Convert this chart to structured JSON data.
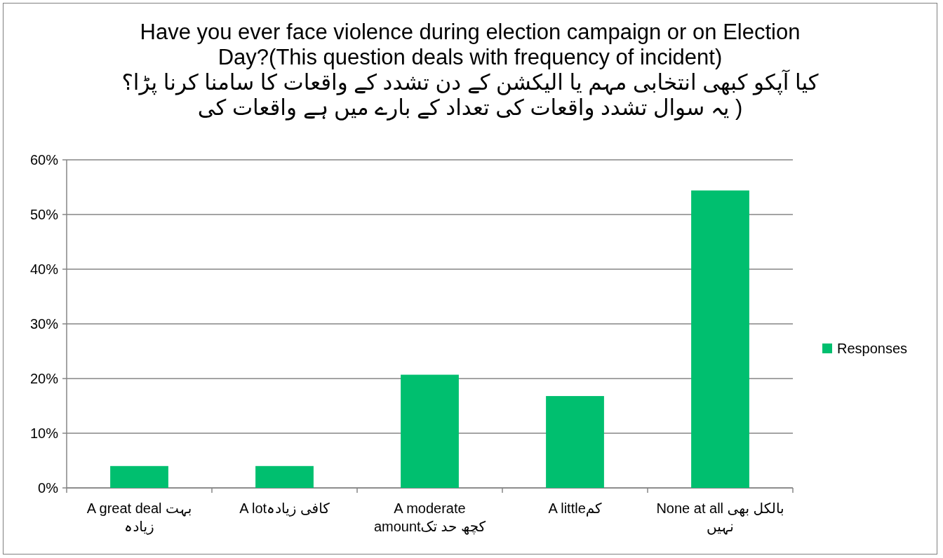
{
  "chart_data": {
    "type": "bar",
    "title": "Have you ever face violence during election campaign or on Election Day?(This question deals with frequency of incident)",
    "subtitle": "کیا آپکو کبھی انتخابی مہم یا الیکشن کے دن تشدد کے واقعات کا سامنا کرنا پڑا؟( یہ سوال تشدد واقعات کی تعداد کے بارے میں ہے واقعات کی",
    "categories": [
      "A great deal بہت زیادہ",
      "A lotکافی زیادہ",
      "A moderate amountکچھ حد تک",
      "A littleکم",
      "None at all بالکل بھی نہیں"
    ],
    "series": [
      {
        "name": "Responses",
        "color": "#00bf6f",
        "values": [
          4,
          4,
          20.7,
          16.8,
          54.4
        ]
      }
    ],
    "ylim": [
      0,
      60
    ],
    "yticks": [
      {
        "value": 0,
        "label": "0%"
      },
      {
        "value": 10,
        "label": "10%"
      },
      {
        "value": 20,
        "label": "20%"
      },
      {
        "value": 30,
        "label": "30%"
      },
      {
        "value": 40,
        "label": "40%"
      },
      {
        "value": 50,
        "label": "50%"
      },
      {
        "value": 60,
        "label": "60%"
      }
    ],
    "grid": "y",
    "legend": "right"
  }
}
